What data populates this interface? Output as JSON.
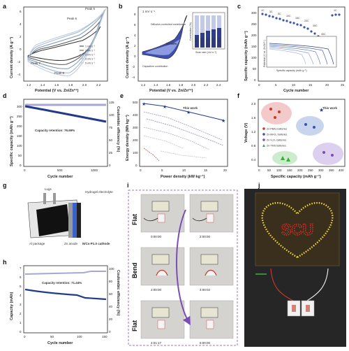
{
  "panels": {
    "a": {
      "label": "a",
      "xlabel": "Potential (V vs. Zn/Zn²⁺)",
      "ylabel": "Current density (A g⁻¹)",
      "xticks": [
        "1.2",
        "1.4",
        "1.6",
        "1.8",
        "2.0",
        "2.2"
      ],
      "yticks": [
        "-4",
        "-2",
        "0",
        "2",
        "4",
        "6"
      ],
      "legend": [
        "1 mV s⁻¹",
        "2 mV s⁻¹",
        "3 mV s⁻¹",
        "4 mV s⁻¹",
        "5 mV s⁻¹"
      ],
      "peaks": [
        "Peak 5",
        "Peak 6",
        "Peak 7",
        "Peak 8"
      ]
    },
    "b": {
      "label": "b",
      "xlabel": "Potential (V vs. Zn/Zn²⁺)",
      "ylabel": "Current density (A g⁻¹)",
      "xticks": [
        "1.2",
        "1.4",
        "1.6",
        "1.8",
        "2.0",
        "2.2",
        "2.4"
      ],
      "yticks": [
        "-4",
        "-2",
        "0",
        "2",
        "4",
        "6",
        "8"
      ],
      "scan": "1 mV s⁻¹",
      "diffusion": "Diffusion-controlled contribution",
      "capacitive": "Capacitive contribution",
      "percent": "29.90%",
      "inset_xlabel": "Scan rate (mV s⁻¹)",
      "inset_ylabel": "Contribution (%)",
      "inset_ticks": [
        "1",
        "2",
        "3",
        "4",
        "5"
      ],
      "inset_values": [
        "29.90%",
        "35.67%",
        "40.44%",
        "43.84%",
        "46.95%"
      ]
    },
    "c": {
      "label": "c",
      "xlabel": "Cycle number",
      "ylabel": "Specific capacity (mAh g⁻¹)",
      "xticks": [
        "0",
        "5",
        "10",
        "15",
        "20",
        "25"
      ],
      "yticks": [
        "0",
        "50",
        "100",
        "150",
        "200",
        "250",
        "300"
      ],
      "rates": [
        "1C",
        "3C",
        "5C",
        "10C",
        "15C",
        "20C",
        "30C",
        "40C",
        "1C"
      ],
      "inset_xlabel": "Specific capacity (mAh g⁻¹)",
      "inset_ylabel": "Potential (V vs. Zn/Zn²⁺)",
      "inset_xticks": [
        "0",
        "50",
        "100",
        "150",
        "200",
        "250"
      ]
    },
    "d": {
      "label": "d",
      "xlabel": "Cycle number",
      "ylabel": "Specific capacity (mAh g⁻¹)",
      "ylabel2": "Coulombic efficiency (%)",
      "xticks": [
        "0",
        "500",
        "1000"
      ],
      "yticks": [
        "0",
        "50",
        "100",
        "150",
        "200",
        "250",
        "300"
      ],
      "yticks2": [
        "0",
        "25",
        "50",
        "75",
        "100",
        "125"
      ],
      "retention": "Capacity retention: 76.69%"
    },
    "e": {
      "label": "e",
      "xlabel": "Power density (kW kg⁻¹)",
      "ylabel": "Energy density (Wh kg⁻¹)",
      "xticks": [
        "0",
        "5",
        "10",
        "15",
        "20"
      ],
      "yticks": [
        "0",
        "100",
        "200",
        "300",
        "400",
        "500"
      ],
      "this_work": "This work"
    },
    "f": {
      "label": "f",
      "xlabel": "Specific capacity (mAh g⁻¹)",
      "ylabel": "Voltage (V)",
      "xticks": [
        "0",
        "50",
        "100",
        "150",
        "200",
        "250",
        "300",
        "350",
        "400"
      ],
      "yticks": [
        "0.4",
        "0.8",
        "1.2",
        "1.6",
        "2.0"
      ],
      "this_work": "This work",
      "legend": [
        "Zn-PBAs batteries",
        "Zn-MnO₂ batteries",
        "Zn-V₂O₅ batteries",
        "Zn-TMS batteries"
      ]
    },
    "g": {
      "label": "g",
      "lugs": "Lugs",
      "electrolyte": "Hydrogel electrolyte",
      "al": "Al package",
      "zn": "Zn anode",
      "cathode": "N/Cs-P1.0 cathode"
    },
    "h": {
      "label": "h",
      "xlabel": "Cycle number",
      "ylabel": "Capacity (mAh)",
      "ylabel2": "Coulombic efficiency (%)",
      "xticks": [
        "0",
        "50",
        "100",
        "150"
      ],
      "yticks": [
        "0",
        "1",
        "2",
        "3",
        "4",
        "5",
        "6",
        "7"
      ],
      "yticks2": [
        "0",
        "20",
        "40",
        "60",
        "80",
        "100"
      ],
      "retention": "Capacity retention: 71.44%"
    },
    "i": {
      "label": "i",
      "flat1": "Flat",
      "bend": "Bend",
      "flat2": "Flat",
      "times": [
        "0:00:00",
        "2:00:00",
        "2:00:00",
        "4:00:02",
        "4:01:17",
        "6:00:00"
      ]
    },
    "j": {
      "label": "j",
      "sign": "SCU"
    }
  }
}
